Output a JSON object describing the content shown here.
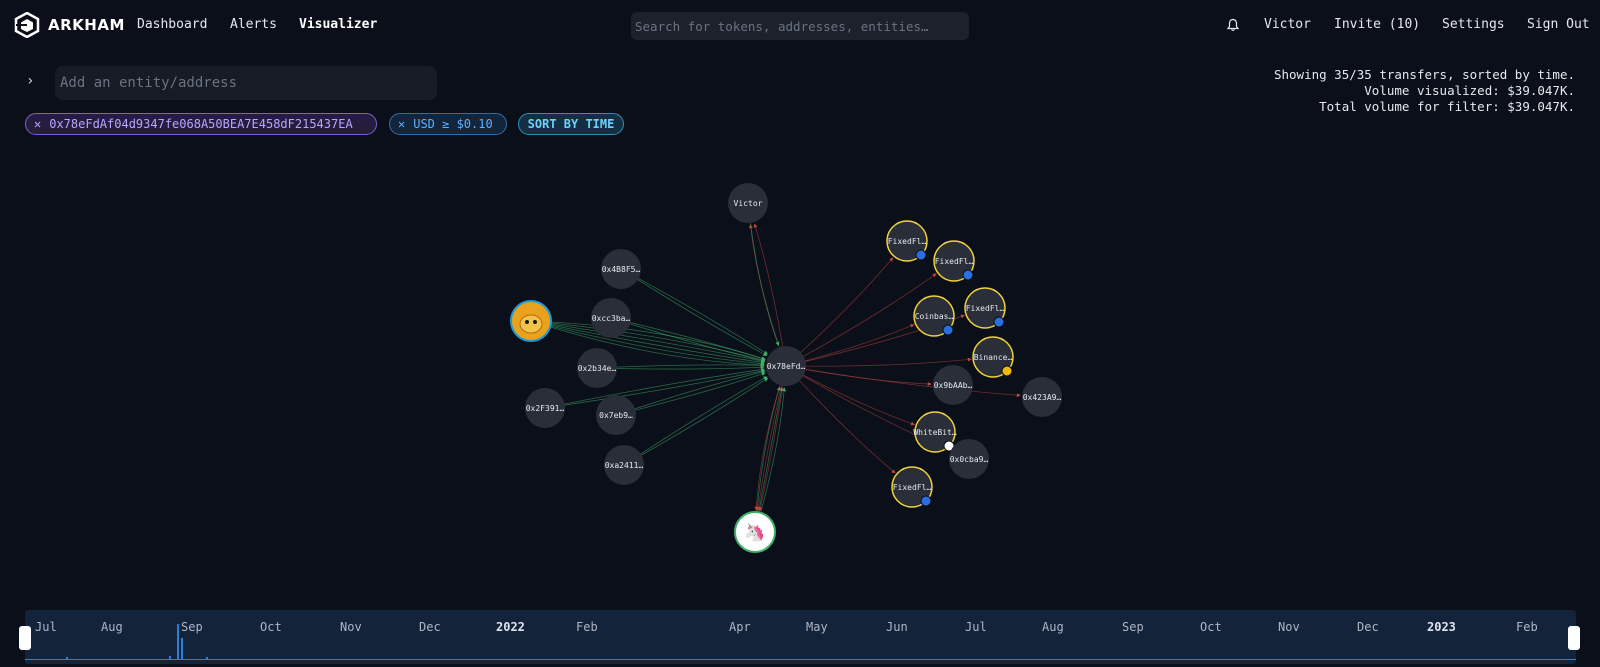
{
  "app": {
    "name": "ARKHAM"
  },
  "nav": {
    "links": [
      "Dashboard",
      "Alerts",
      "Visualizer"
    ]
  },
  "search": {
    "placeholder": "Search for tokens, addresses, entities…"
  },
  "user": {
    "name": "Victor",
    "invite": "Invite (10)",
    "settings": "Settings",
    "signout": "Sign Out"
  },
  "entity_input": {
    "placeholder": "Add an entity/address"
  },
  "filters": {
    "address": "0x78eFdAf04d9347fe068A50BEA7E458dF215437EA",
    "usd": "USD ≥ $0.10",
    "sort": "SORT BY TIME"
  },
  "summary": {
    "line1": "Showing 35/35 transfers, sorted by time.",
    "line2": "Volume visualized: $39.047K.",
    "line3": "Total volume for filter: $39.047K."
  },
  "graph": {
    "center": {
      "label": "0x78eFd…"
    },
    "nodes": [
      {
        "label": "Victor",
        "kind": "plain"
      },
      {
        "label": "0x4B8F5…",
        "kind": "plain"
      },
      {
        "label": "0xcc3ba…",
        "kind": "plain"
      },
      {
        "label": "",
        "kind": "avatar"
      },
      {
        "label": "0x2b34e…",
        "kind": "plain"
      },
      {
        "label": "0x2F391…",
        "kind": "plain"
      },
      {
        "label": "0x7eb9…",
        "kind": "plain"
      },
      {
        "label": "0xa2411…",
        "kind": "plain"
      },
      {
        "label": "",
        "kind": "uniswap"
      },
      {
        "label": "FixedFl…",
        "kind": "entity"
      },
      {
        "label": "FixedFl…",
        "kind": "entity"
      },
      {
        "label": "Coinbas…",
        "kind": "entity"
      },
      {
        "label": "FixedFl…",
        "kind": "entity"
      },
      {
        "label": "Binance…",
        "kind": "entity"
      },
      {
        "label": "0x9bAAb…",
        "kind": "plain"
      },
      {
        "label": "0x423A9…",
        "kind": "plain"
      },
      {
        "label": "WhiteBit…",
        "kind": "entity"
      },
      {
        "label": "0x0cba9…",
        "kind": "plain"
      },
      {
        "label": "FixedFl…",
        "kind": "entity"
      }
    ],
    "colors": {
      "inflow": "#3fb06b",
      "outflow": "#c0453e",
      "entity_ring": "#f0d23a",
      "node_fill": "#2a2e38"
    }
  },
  "timeline": {
    "months": [
      {
        "label": "Jul",
        "year": false
      },
      {
        "label": "Aug",
        "year": false
      },
      {
        "label": "Sep",
        "year": false
      },
      {
        "label": "Oct",
        "year": false
      },
      {
        "label": "Nov",
        "year": false
      },
      {
        "label": "Dec",
        "year": false
      },
      {
        "label": "2022",
        "year": true
      },
      {
        "label": "Feb",
        "year": false
      },
      {
        "label": "Apr",
        "year": false
      },
      {
        "label": "May",
        "year": false
      },
      {
        "label": "Jun",
        "year": false
      },
      {
        "label": "Jul",
        "year": false
      },
      {
        "label": "Aug",
        "year": false
      },
      {
        "label": "Sep",
        "year": false
      },
      {
        "label": "Oct",
        "year": false
      },
      {
        "label": "Nov",
        "year": false
      },
      {
        "label": "Dec",
        "year": false
      },
      {
        "label": "2023",
        "year": true
      },
      {
        "label": "Feb",
        "year": false
      }
    ]
  }
}
